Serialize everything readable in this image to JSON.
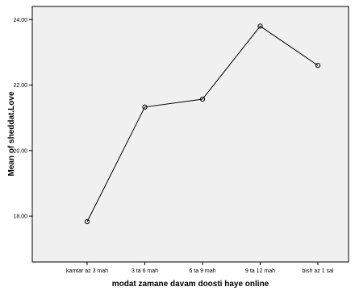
{
  "chart_data": {
    "type": "line",
    "title": "",
    "xlabel": "modat zamane davam doosti haye online",
    "ylabel": "Mean of sheddat.Love",
    "categories": [
      "kamtar az 3 mah",
      "3 ta 6 mah",
      "6 ta 9 mah",
      "9 ta 12 mah",
      "bish az 1 sal"
    ],
    "series": [
      {
        "values": [
          17.83,
          21.33,
          21.57,
          23.8,
          22.6
        ]
      }
    ],
    "ylim": [
      16.6,
      24.4
    ],
    "yticks": [
      18.0,
      20.0,
      22.0,
      24.0
    ],
    "ytick_labels": [
      "18.00",
      "20.00",
      "22.00",
      "24.00"
    ],
    "grid": false,
    "colors": {
      "plot_background": "#f0f0f0",
      "line": "#000000",
      "axis": "#000000"
    }
  }
}
